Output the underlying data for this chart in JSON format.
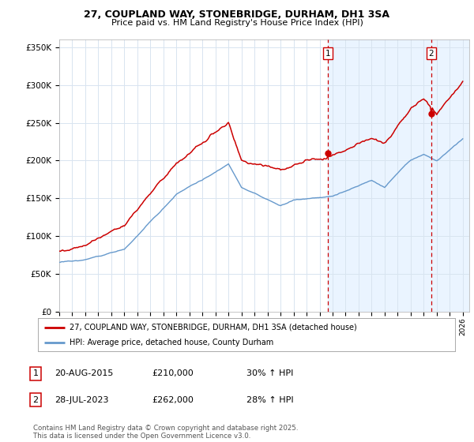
{
  "title_line1": "27, COUPLAND WAY, STONEBRIDGE, DURHAM, DH1 3SA",
  "title_line2": "Price paid vs. HM Land Registry's House Price Index (HPI)",
  "ylim": [
    0,
    360000
  ],
  "yticks": [
    0,
    50000,
    100000,
    150000,
    200000,
    250000,
    300000,
    350000
  ],
  "ytick_labels": [
    "£0",
    "£50K",
    "£100K",
    "£150K",
    "£200K",
    "£250K",
    "£300K",
    "£350K"
  ],
  "background_color": "#ffffff",
  "grid_color": "#d8e4f0",
  "line_color_red": "#cc0000",
  "line_color_blue": "#6699cc",
  "shade_color": "#ddeeff",
  "marker1_date_x": 2015.645,
  "marker1_y": 210000,
  "marker2_date_x": 2023.578,
  "marker2_y": 262000,
  "vline1_x": 2015.645,
  "vline2_x": 2023.578,
  "legend_label_red": "27, COUPLAND WAY, STONEBRIDGE, DURHAM, DH1 3SA (detached house)",
  "legend_label_blue": "HPI: Average price, detached house, County Durham",
  "table_entries": [
    {
      "num": "1",
      "date": "20-AUG-2015",
      "price": "£210,000",
      "hpi": "30% ↑ HPI"
    },
    {
      "num": "2",
      "date": "28-JUL-2023",
      "price": "£262,000",
      "hpi": "28% ↑ HPI"
    }
  ],
  "footnote": "Contains HM Land Registry data © Crown copyright and database right 2025.\nThis data is licensed under the Open Government Licence v3.0.",
  "xmin": 1995.0,
  "xmax": 2026.5,
  "xticks": [
    1995,
    1996,
    1997,
    1998,
    1999,
    2000,
    2001,
    2002,
    2003,
    2004,
    2005,
    2006,
    2007,
    2008,
    2009,
    2010,
    2011,
    2012,
    2013,
    2014,
    2015,
    2016,
    2017,
    2018,
    2019,
    2020,
    2021,
    2022,
    2023,
    2024,
    2025,
    2026
  ]
}
